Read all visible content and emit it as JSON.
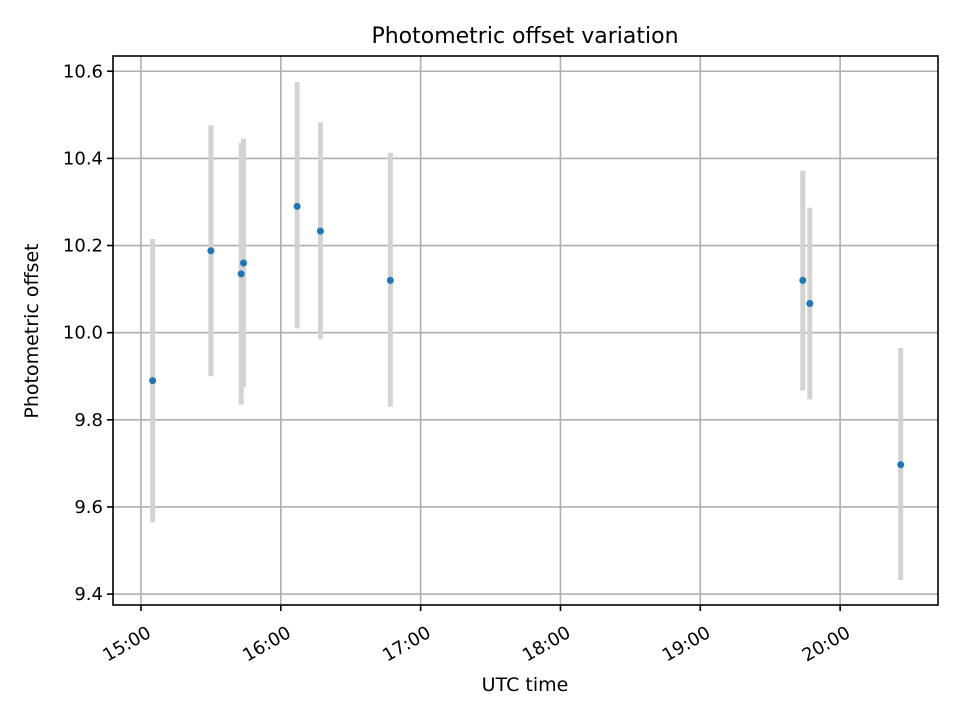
{
  "chart_data": {
    "type": "scatter",
    "title": "Photometric offset variation",
    "xlabel": "UTC time",
    "ylabel": "Photometric offset",
    "x_ticks": [
      "15:00",
      "16:00",
      "17:00",
      "18:00",
      "19:00",
      "20:00"
    ],
    "y_ticks": [
      "9.4",
      "9.6",
      "9.8",
      "10.0",
      "10.2",
      "10.4",
      "10.6"
    ],
    "xlim": [
      "14:48",
      "20:42"
    ],
    "ylim": [
      9.375,
      10.635
    ],
    "grid": true,
    "colors": {
      "point": "#1f77b4",
      "errorbar": "#d3d3d3",
      "grid": "#b0b0b0"
    },
    "points": [
      {
        "x": "15:05",
        "y": 9.89,
        "ylow": 9.565,
        "yhigh": 10.215
      },
      {
        "x": "15:30",
        "y": 10.188,
        "ylow": 9.9,
        "yhigh": 10.476
      },
      {
        "x": "15:43",
        "y": 10.135,
        "ylow": 9.835,
        "yhigh": 10.435
      },
      {
        "x": "15:44",
        "y": 10.16,
        "ylow": 9.875,
        "yhigh": 10.445
      },
      {
        "x": "16:07",
        "y": 10.29,
        "ylow": 10.01,
        "yhigh": 10.575
      },
      {
        "x": "16:17",
        "y": 10.233,
        "ylow": 9.985,
        "yhigh": 10.483
      },
      {
        "x": "16:47",
        "y": 10.12,
        "ylow": 9.83,
        "yhigh": 10.413
      },
      {
        "x": "19:44",
        "y": 10.12,
        "ylow": 9.868,
        "yhigh": 10.372
      },
      {
        "x": "19:47",
        "y": 10.067,
        "ylow": 9.847,
        "yhigh": 10.287
      },
      {
        "x": "20:26",
        "y": 9.697,
        "ylow": 9.432,
        "yhigh": 9.965
      }
    ]
  }
}
